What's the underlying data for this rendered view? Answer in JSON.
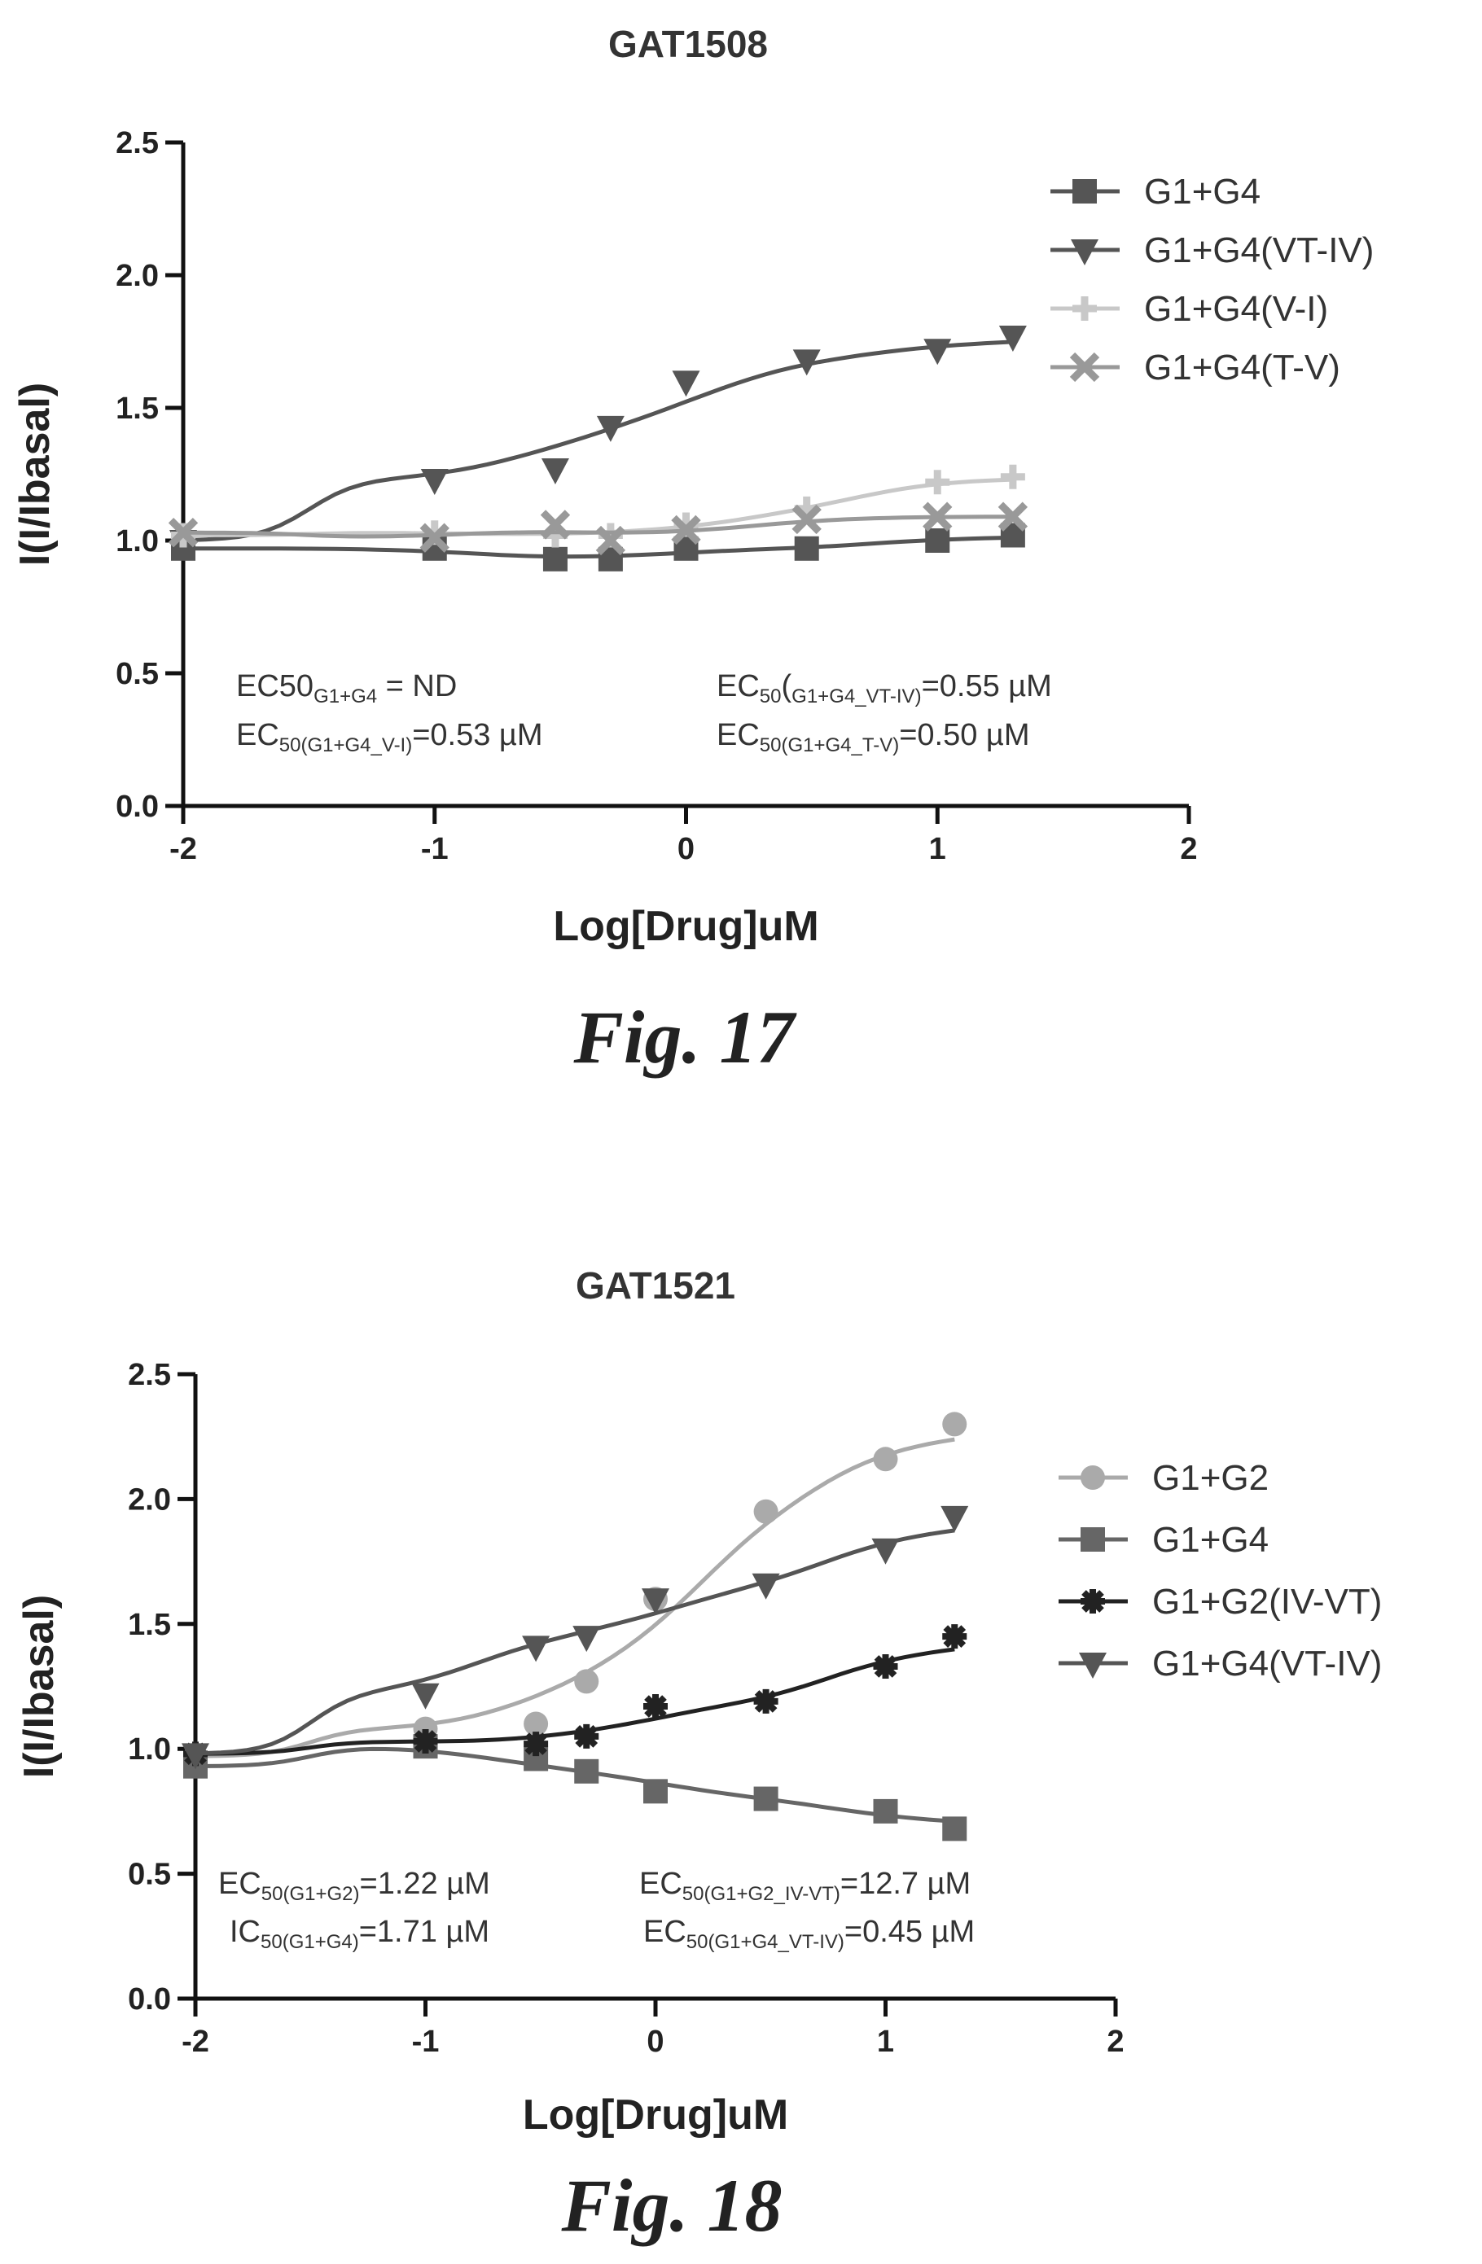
{
  "figures": [
    {
      "caption": "Fig. 17"
    },
    {
      "caption": "Fig. 18"
    }
  ],
  "chart_data": [
    {
      "type": "scatter",
      "title": "GAT1508",
      "xlabel": "Log[Drug]uM",
      "ylabel": "I(I/Ibasal)",
      "xlim": [
        -2,
        2
      ],
      "ylim": [
        0,
        2.5
      ],
      "xticks": [
        "-2",
        "-1",
        "0",
        "1",
        "2"
      ],
      "yticks": [
        "0.0",
        "0.5",
        "1.0",
        "1.5",
        "2.0",
        "2.5"
      ],
      "legend_position": "top-right",
      "annotations": [
        [
          "EC50",
          "G1+G4",
          " = ND"
        ],
        [
          "EC",
          "50",
          "(",
          "G1+G4_VT-IV)",
          "=0.55 µM"
        ],
        [
          "EC",
          "50(G1+G4_V-I)",
          "=0.53 µM"
        ],
        [
          "EC",
          "50(G1+G4_T-V)",
          "=0.50 µM"
        ]
      ],
      "series": [
        {
          "name": "G1+G4",
          "marker": "square",
          "color": "#555555",
          "x": [
            -2,
            -1,
            -0.52,
            -0.3,
            0,
            0.48,
            1,
            1.3
          ],
          "y": [
            0.97,
            0.97,
            0.93,
            0.93,
            0.97,
            0.97,
            1.0,
            1.02
          ]
        },
        {
          "name": "G1+G4(VT-IV)",
          "marker": "triangle-down",
          "color": "#555555",
          "x": [
            -2,
            -1,
            -0.52,
            -0.3,
            0,
            0.48,
            1,
            1.3
          ],
          "y": [
            1.0,
            1.23,
            1.27,
            1.43,
            1.6,
            1.68,
            1.72,
            1.77
          ]
        },
        {
          "name": "G1+G4(V-I)",
          "marker": "plus",
          "color": "#c8c8c8",
          "x": [
            -2,
            -1,
            -0.52,
            -0.3,
            0,
            0.48,
            1,
            1.3
          ],
          "y": [
            1.02,
            1.03,
            1.02,
            1.02,
            1.06,
            1.12,
            1.22,
            1.24
          ]
        },
        {
          "name": "G1+G4(T-V)",
          "marker": "x",
          "color": "#999999",
          "x": [
            -2,
            -1,
            -0.52,
            -0.3,
            0,
            0.48,
            1,
            1.3
          ],
          "y": [
            1.03,
            1.01,
            1.06,
            1.0,
            1.04,
            1.08,
            1.09,
            1.09
          ]
        }
      ]
    },
    {
      "type": "scatter",
      "title": "GAT1521",
      "xlabel": "Log[Drug]uM",
      "ylabel": "I(I/Ibasal)",
      "xlim": [
        -2,
        2
      ],
      "ylim": [
        0,
        2.5
      ],
      "xticks": [
        "-2",
        "-1",
        "0",
        "1",
        "2"
      ],
      "yticks": [
        "0.0",
        "0.5",
        "1.0",
        "1.5",
        "2.0",
        "2.5"
      ],
      "legend_position": "right",
      "annotations": [
        [
          "EC",
          "50(G1+G2)",
          "=1.22 µM"
        ],
        [
          "EC",
          "50(G1+G2_IV-VT)",
          "=12.7 µM"
        ],
        [
          "IC",
          "50(G1+G4)",
          "=1.71 µM"
        ],
        [
          "EC",
          "50(G1+G4_VT-IV)",
          "=0.45 µM"
        ]
      ],
      "series": [
        {
          "name": "G1+G2",
          "marker": "circle",
          "color": "#aaaaaa",
          "x": [
            -2,
            -1,
            -0.52,
            -0.3,
            0,
            0.48,
            1,
            1.3
          ],
          "y": [
            0.97,
            1.08,
            1.1,
            1.27,
            1.6,
            1.95,
            2.16,
            2.3
          ]
        },
        {
          "name": "G1+G4",
          "marker": "square",
          "color": "#666666",
          "x": [
            -2,
            -1,
            -0.52,
            -0.3,
            0,
            0.48,
            1,
            1.3
          ],
          "y": [
            0.93,
            1.01,
            0.96,
            0.91,
            0.83,
            0.8,
            0.75,
            0.68
          ]
        },
        {
          "name": "G1+G2(IV-VT)",
          "marker": "star",
          "color": "#222222",
          "x": [
            -2,
            -1,
            -0.52,
            -0.3,
            0,
            0.48,
            1,
            1.3
          ],
          "y": [
            0.98,
            1.03,
            1.02,
            1.05,
            1.17,
            1.19,
            1.33,
            1.45
          ]
        },
        {
          "name": "G1+G4(VT-IV)",
          "marker": "triangle-down",
          "color": "#555555",
          "x": [
            -2,
            -1,
            -0.52,
            -0.3,
            0,
            0.48,
            1,
            1.3
          ],
          "y": [
            0.98,
            1.22,
            1.41,
            1.45,
            1.6,
            1.66,
            1.8,
            1.93
          ]
        }
      ]
    }
  ]
}
